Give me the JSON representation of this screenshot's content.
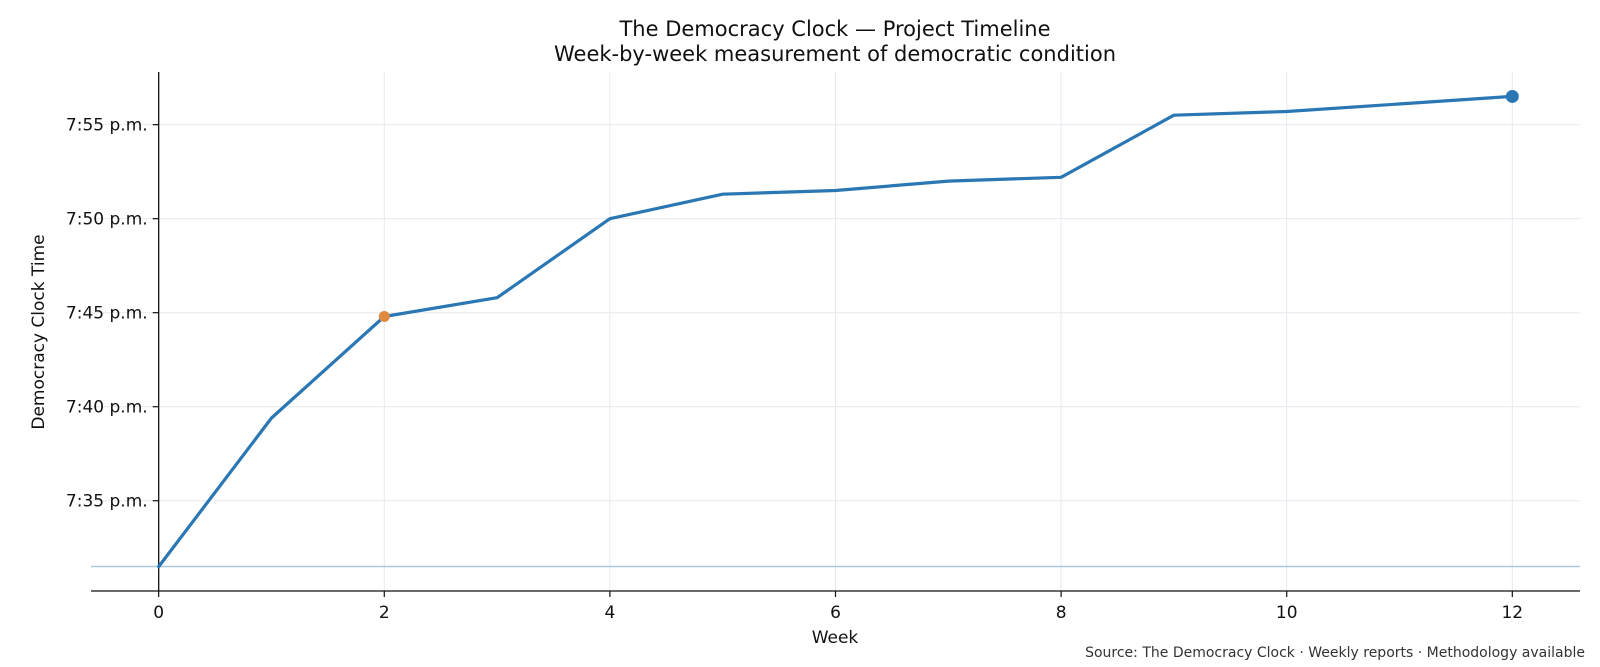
{
  "chart_data": {
    "type": "line",
    "title": "The Democracy Clock — Project Timeline",
    "subtitle": "Week-by-week measurement of democratic condition",
    "xlabel": "Week",
    "ylabel": "Democracy Clock Time",
    "source": "Source: The Democracy Clock · Weekly reports · Methodology available",
    "x_ticks": [
      0,
      2,
      4,
      6,
      8,
      10,
      12
    ],
    "y_ticks": [
      {
        "value": 35,
        "label": "7:35 p.m."
      },
      {
        "value": 40,
        "label": "7:40 p.m."
      },
      {
        "value": 45,
        "label": "7:45 p.m."
      },
      {
        "value": 50,
        "label": "7:50 p.m."
      },
      {
        "value": 55,
        "label": "7:55 p.m."
      }
    ],
    "xlim": [
      -0.6,
      12.6
    ],
    "ylim": [
      30.2,
      57.8
    ],
    "grid": true,
    "y_unit": "minutes past 7 p.m.",
    "series": [
      {
        "color": "#2a77b4",
        "x": [
          0,
          1,
          2,
          3,
          4,
          5,
          6,
          7,
          8,
          9,
          10,
          12
        ],
        "y": [
          31.5,
          39.4,
          44.8,
          45.8,
          50.0,
          51.3,
          51.5,
          52.0,
          52.2,
          55.5,
          55.7,
          56.5
        ]
      }
    ],
    "baseline": {
      "y": 31.5,
      "color": "#a9c9e0"
    },
    "highlights": [
      {
        "x": 2,
        "y": 44.8,
        "color": "#e0883d"
      },
      {
        "x": 12,
        "y": 56.5,
        "color": "#2a77b4"
      }
    ]
  }
}
